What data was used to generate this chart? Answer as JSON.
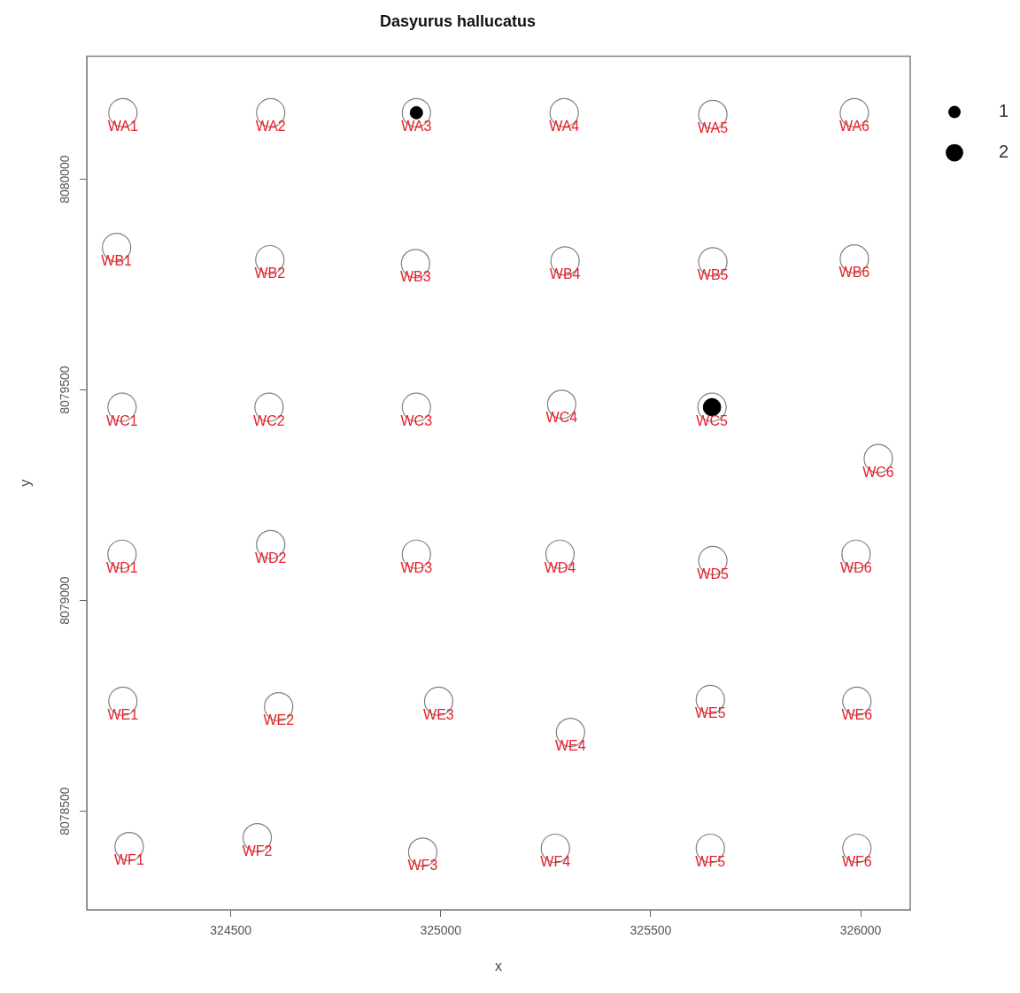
{
  "chart_data": {
    "type": "scatter",
    "title": "Dasyurus hallucatus",
    "xlabel": "x",
    "ylabel": "y",
    "xlim": [
      324157,
      326118
    ],
    "ylim": [
      8078266,
      8080292
    ],
    "xticks": [
      324500,
      325000,
      325500,
      326000
    ],
    "yticks": [
      8078500,
      8079000,
      8079500,
      8080000
    ],
    "grid": false,
    "marker": "circle",
    "size_legend": [
      1,
      2
    ],
    "series": [
      {
        "color": "#808080",
        "x": [
          324243,
          324595,
          324942,
          325294,
          325648,
          325985,
          324228,
          324593,
          324940,
          325296,
          325648,
          325985,
          324241,
          324591,
          324942,
          325288,
          325646,
          326042,
          324241,
          324595,
          324942,
          325284,
          325648,
          325989,
          324243,
          324614,
          324995,
          325309,
          325642,
          325991,
          324258,
          324563,
          324957,
          325273,
          325642,
          325991
        ],
        "values": [
          8080158,
          8080158,
          8080158,
          8080158,
          8080154,
          8080158,
          8079838,
          8079809,
          8079800,
          8079806,
          8079804,
          8079811,
          8079459,
          8079459,
          8079459,
          8079466,
          8079459,
          8079337,
          8079110,
          8079133,
          8079110,
          8079110,
          8079095,
          8079110,
          8078761,
          8078748,
          8078761,
          8078687,
          8078765,
          8078761,
          8078416,
          8078437,
          8078403,
          8078412,
          8078412,
          8078412
        ],
        "value_labels": [
          "WA1",
          "WA2",
          "WA3",
          "WA4",
          "WA5",
          "WA6",
          "WB1",
          "WB2",
          "WB3",
          "WB4",
          "WB5",
          "WB6",
          "WC1",
          "WC2",
          "WC3",
          "WC4",
          "WC5",
          "WC6",
          "WD1",
          "WD2",
          "WD3",
          "WD4",
          "WD5",
          "WD6",
          "WE1",
          "WE2",
          "WE3",
          "WE4",
          "WE5",
          "WE6",
          "WF1",
          "WF2",
          "WF3",
          "WF4",
          "WF5",
          "WF6"
        ]
      },
      {
        "type": "bubble",
        "color": "#000000",
        "x": [
          324942,
          325646
        ],
        "values": [
          8080158,
          8079459
        ],
        "sizes": [
          1,
          2
        ]
      }
    ]
  }
}
